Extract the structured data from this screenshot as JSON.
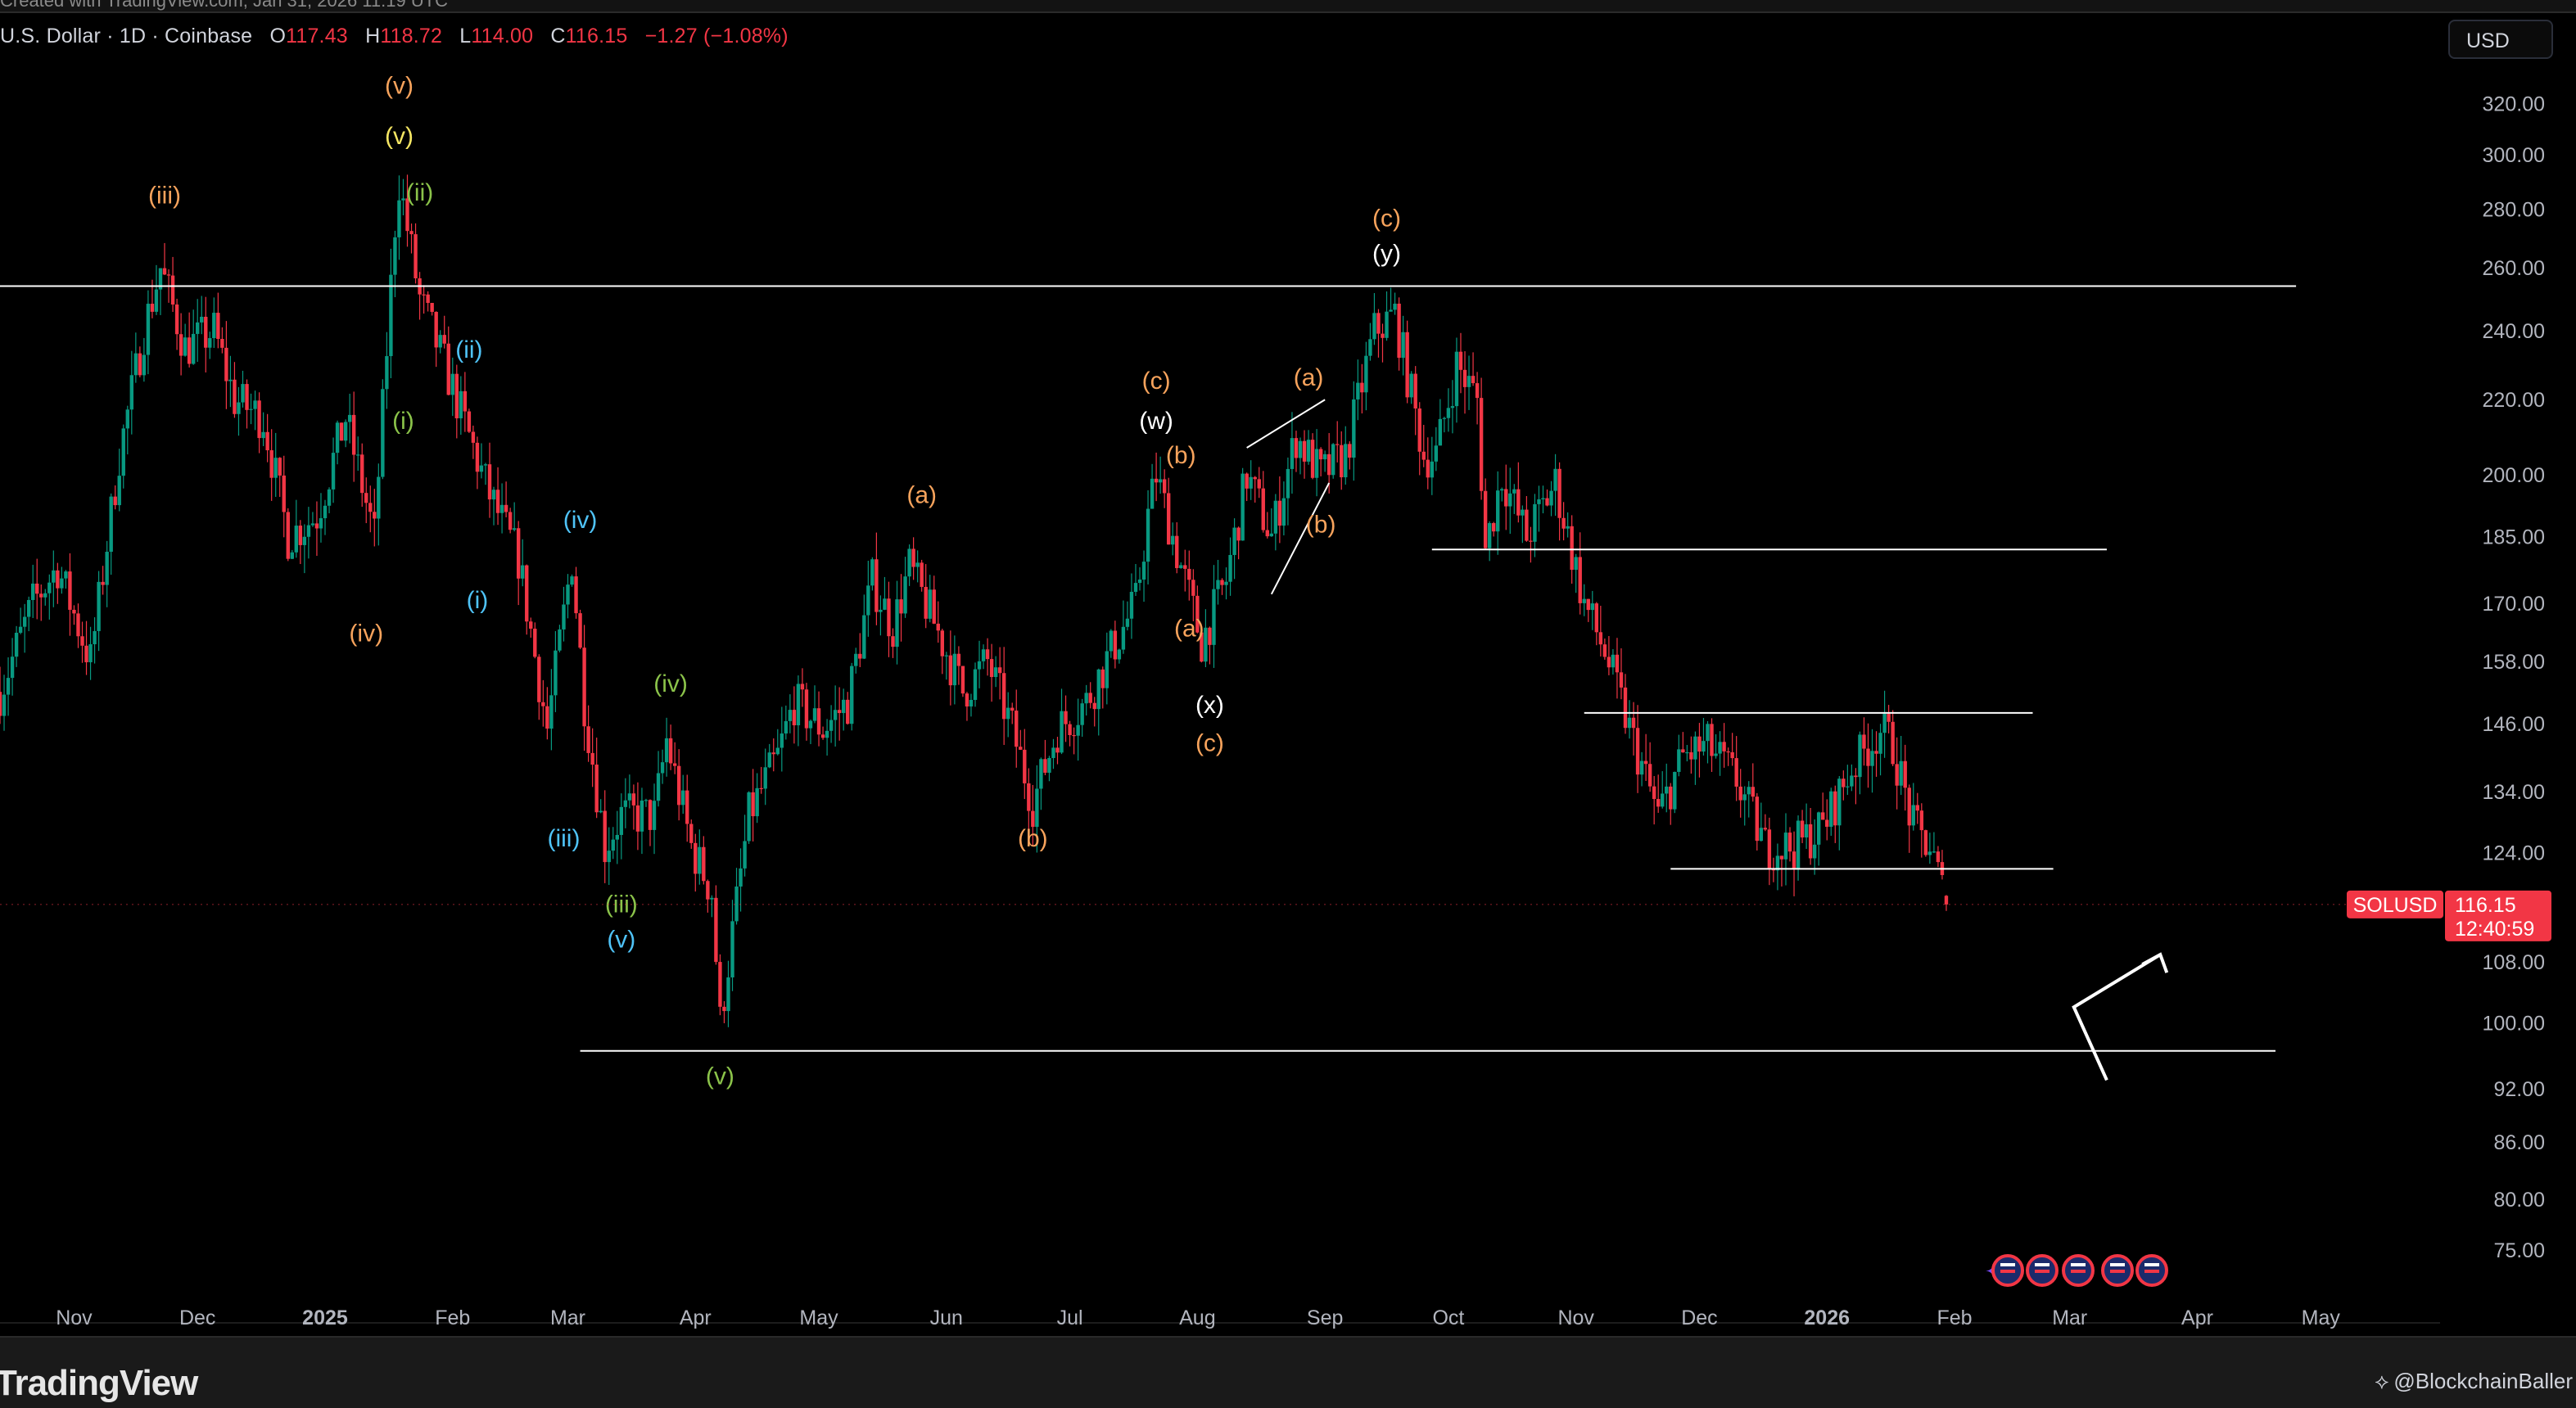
{
  "header": {
    "top_strip": "Created with TradingView.com, Jan 31, 2026 11:19 UTC",
    "symbol_desc": "U.S. Dollar · 1D · Coinbase",
    "open_label": "O",
    "open": "117.43",
    "high_label": "H",
    "high": "118.72",
    "low_label": "L",
    "low": "114.00",
    "close_label": "C",
    "close": "116.15",
    "change": "−1.27 (−1.08%)"
  },
  "currency": "USD",
  "price_badge": {
    "symbol": "SOLUSD",
    "price": "116.15",
    "countdown": "12:40:59"
  },
  "footer": {
    "logo": "TradingView",
    "credit": "@BlockchainBaller"
  },
  "colors": {
    "background": "#000000",
    "up": "#089981",
    "down": "#f23645",
    "orange": "#f7a35c",
    "yellow": "#f5e663",
    "green": "#8bc34a",
    "blue": "#4fc3f7",
    "white": "#ffffff"
  },
  "icons": [
    "tradingview-logo-icon",
    "flag-events-icon",
    "sparkle-icon",
    "branch-icon"
  ],
  "chart_data": {
    "type": "candlestick",
    "title": "",
    "scale": "log",
    "y_ticks": [
      75,
      80,
      86,
      92,
      100,
      108,
      124,
      134,
      146,
      158,
      170,
      185,
      200,
      220,
      240,
      260,
      280,
      300,
      320
    ],
    "y_tick_labels": [
      "75.00",
      "80.00",
      "86.00",
      "92.00",
      "100.00",
      "108.00",
      "124.00",
      "134.00",
      "146.00",
      "158.00",
      "170.00",
      "185.00",
      "200.00",
      "220.00",
      "240.00",
      "260.00",
      "280.00",
      "300.00",
      "320.00"
    ],
    "x_ticks": [
      "Nov",
      "Dec",
      "2025",
      "Feb",
      "Mar",
      "Apr",
      "May",
      "Jun",
      "Jul",
      "Aug",
      "Sep",
      "Oct",
      "Nov",
      "Dec",
      "2026",
      "Feb",
      "Mar",
      "Apr",
      "May"
    ],
    "x_tick_dates": [
      "2024-11-01",
      "2024-12-01",
      "2025-01-01",
      "2025-02-01",
      "2025-03-01",
      "2025-04-01",
      "2025-05-01",
      "2025-06-01",
      "2025-07-01",
      "2025-08-01",
      "2025-09-01",
      "2025-10-01",
      "2025-11-01",
      "2025-12-01",
      "2026-01-01",
      "2026-02-01",
      "2026-03-01",
      "2026-04-01",
      "2026-05-01"
    ],
    "x_range": [
      "2024-10-14",
      "2026-05-30"
    ],
    "y_range": [
      71,
      350
    ],
    "price_path": [
      [
        "2024-10-14",
        152
      ],
      [
        "2024-10-22",
        170
      ],
      [
        "2024-10-28",
        178
      ],
      [
        "2024-11-05",
        158
      ],
      [
        "2024-11-12",
        205
      ],
      [
        "2024-11-18",
        240
      ],
      [
        "2024-11-22",
        260
      ],
      [
        "2024-11-28",
        235
      ],
      [
        "2024-12-05",
        240
      ],
      [
        "2024-12-10",
        220
      ],
      [
        "2024-12-17",
        215
      ],
      [
        "2024-12-23",
        185
      ],
      [
        "2024-12-30",
        190
      ],
      [
        "2025-01-06",
        215
      ],
      [
        "2025-01-13",
        185
      ],
      [
        "2025-01-18",
        275
      ],
      [
        "2025-01-19",
        290
      ],
      [
        "2025-01-24",
        250
      ],
      [
        "2025-01-30",
        230
      ],
      [
        "2025-02-05",
        210
      ],
      [
        "2025-02-10",
        195
      ],
      [
        "2025-02-17",
        180
      ],
      [
        "2025-02-24",
        145
      ],
      [
        "2025-03-02",
        180
      ],
      [
        "2025-03-05",
        150
      ],
      [
        "2025-03-10",
        125
      ],
      [
        "2025-03-14",
        130
      ],
      [
        "2025-03-22",
        130
      ],
      [
        "2025-03-25",
        143
      ],
      [
        "2025-03-31",
        125
      ],
      [
        "2025-04-05",
        118
      ],
      [
        "2025-04-07",
        100
      ],
      [
        "2025-04-10",
        112
      ],
      [
        "2025-04-14",
        130
      ],
      [
        "2025-04-21",
        140
      ],
      [
        "2025-04-25",
        150
      ],
      [
        "2025-05-02",
        145
      ],
      [
        "2025-05-08",
        150
      ],
      [
        "2025-05-14",
        175
      ],
      [
        "2025-05-19",
        165
      ],
      [
        "2025-05-23",
        178
      ],
      [
        "2025-05-28",
        168
      ],
      [
        "2025-06-05",
        152
      ],
      [
        "2025-06-11",
        158
      ],
      [
        "2025-06-17",
        145
      ],
      [
        "2025-06-22",
        132
      ],
      [
        "2025-06-28",
        145
      ],
      [
        "2025-07-05",
        150
      ],
      [
        "2025-07-11",
        160
      ],
      [
        "2025-07-17",
        170
      ],
      [
        "2025-07-20",
        190
      ],
      [
        "2025-07-22",
        200
      ],
      [
        "2025-07-26",
        185
      ],
      [
        "2025-08-02",
        162
      ],
      [
        "2025-08-08",
        175
      ],
      [
        "2025-08-13",
        200
      ],
      [
        "2025-08-19",
        185
      ],
      [
        "2025-08-25",
        210
      ],
      [
        "2025-08-31",
        200
      ],
      [
        "2025-09-06",
        205
      ],
      [
        "2025-09-13",
        240
      ],
      [
        "2025-09-18",
        245
      ],
      [
        "2025-09-25",
        205
      ],
      [
        "2025-09-28",
        205
      ],
      [
        "2025-10-03",
        230
      ],
      [
        "2025-10-08",
        220
      ],
      [
        "2025-10-10",
        182
      ],
      [
        "2025-10-14",
        200
      ],
      [
        "2025-10-20",
        185
      ],
      [
        "2025-10-27",
        198
      ],
      [
        "2025-11-03",
        170
      ],
      [
        "2025-11-08",
        160
      ],
      [
        "2025-11-14",
        145
      ],
      [
        "2025-11-21",
        130
      ],
      [
        "2025-11-27",
        140
      ],
      [
        "2025-12-03",
        142
      ],
      [
        "2025-12-10",
        136
      ],
      [
        "2025-12-17",
        125
      ],
      [
        "2025-12-24",
        125
      ],
      [
        "2025-12-31",
        128
      ],
      [
        "2026-01-07",
        138
      ],
      [
        "2026-01-14",
        145
      ],
      [
        "2026-01-17",
        142
      ],
      [
        "2026-01-22",
        128
      ],
      [
        "2026-01-26",
        125
      ],
      [
        "2026-01-30",
        116.15
      ]
    ],
    "horizontal_levels": [
      {
        "price": 254,
        "from": "2024-10-14",
        "to": "2026-04-25"
      },
      {
        "price": 182,
        "from": "2025-09-27",
        "to": "2026-03-10"
      },
      {
        "price": 148,
        "from": "2025-11-03",
        "to": "2026-02-20"
      },
      {
        "price": 121.5,
        "from": "2025-11-24",
        "to": "2026-02-25"
      },
      {
        "price": 96.5,
        "from": "2025-03-04",
        "to": "2026-04-20"
      }
    ],
    "annotations": [
      {
        "text": "(iii)",
        "date": "2024-11-23",
        "price": 282,
        "color": "orange"
      },
      {
        "text": "(v)",
        "date": "2025-01-19",
        "price": 324,
        "color": "orange"
      },
      {
        "text": "(v)",
        "date": "2025-01-19",
        "price": 304,
        "color": "yellow"
      },
      {
        "text": "(ii)",
        "date": "2025-01-24",
        "price": 283,
        "color": "green"
      },
      {
        "text": "(ii)",
        "date": "2025-02-05",
        "price": 232,
        "color": "blue"
      },
      {
        "text": "(i)",
        "date": "2025-01-20",
        "price": 212,
        "color": "green"
      },
      {
        "text": "(iv)",
        "date": "2025-01-11",
        "price": 162,
        "color": "orange"
      },
      {
        "text": "(i)",
        "date": "2025-02-07",
        "price": 169,
        "color": "blue"
      },
      {
        "text": "(iv)",
        "date": "2025-03-04",
        "price": 187,
        "color": "blue"
      },
      {
        "text": "(iv)",
        "date": "2025-03-26",
        "price": 152,
        "color": "green"
      },
      {
        "text": "(iii)",
        "date": "2025-02-28",
        "price": 125,
        "color": "blue"
      },
      {
        "text": "(iii)",
        "date": "2025-03-14",
        "price": 115,
        "color": "green"
      },
      {
        "text": "(v)",
        "date": "2025-03-14",
        "price": 110,
        "color": "blue"
      },
      {
        "text": "(v)",
        "date": "2025-04-07",
        "price": 92.5,
        "color": "green"
      },
      {
        "text": "(a)",
        "date": "2025-05-26",
        "price": 193,
        "color": "orange"
      },
      {
        "text": "(b)",
        "date": "2025-06-22",
        "price": 125,
        "color": "orange"
      },
      {
        "text": "(c)",
        "date": "2025-07-22",
        "price": 223,
        "color": "orange"
      },
      {
        "text": "(w)",
        "date": "2025-07-22",
        "price": 212,
        "color": "white"
      },
      {
        "text": "(b)",
        "date": "2025-07-28",
        "price": 203,
        "color": "orange"
      },
      {
        "text": "(a)",
        "date": "2025-07-30",
        "price": 163,
        "color": "orange"
      },
      {
        "text": "(x)",
        "date": "2025-08-04",
        "price": 148,
        "color": "white"
      },
      {
        "text": "(c)",
        "date": "2025-08-04",
        "price": 141,
        "color": "orange"
      },
      {
        "text": "(a)",
        "date": "2025-08-28",
        "price": 224,
        "color": "orange"
      },
      {
        "text": "(b)",
        "date": "2025-08-31",
        "price": 186,
        "color": "orange"
      },
      {
        "text": "(c)",
        "date": "2025-09-16",
        "price": 274,
        "color": "orange"
      },
      {
        "text": "(y)",
        "date": "2025-09-16",
        "price": 262,
        "color": "white"
      }
    ],
    "drawings": [
      {
        "kind": "channel-line",
        "points": [
          [
            "2025-08-13",
            207
          ],
          [
            "2025-09-01",
            220
          ]
        ]
      },
      {
        "kind": "channel-line",
        "points": [
          [
            "2025-08-19",
            172
          ],
          [
            "2025-09-02",
            198
          ]
        ]
      },
      {
        "kind": "projection-arrow",
        "points": [
          [
            "2026-03-10",
            93
          ],
          [
            "2026-03-02",
            102
          ],
          [
            "2026-03-23",
            109
          ]
        ]
      }
    ]
  }
}
